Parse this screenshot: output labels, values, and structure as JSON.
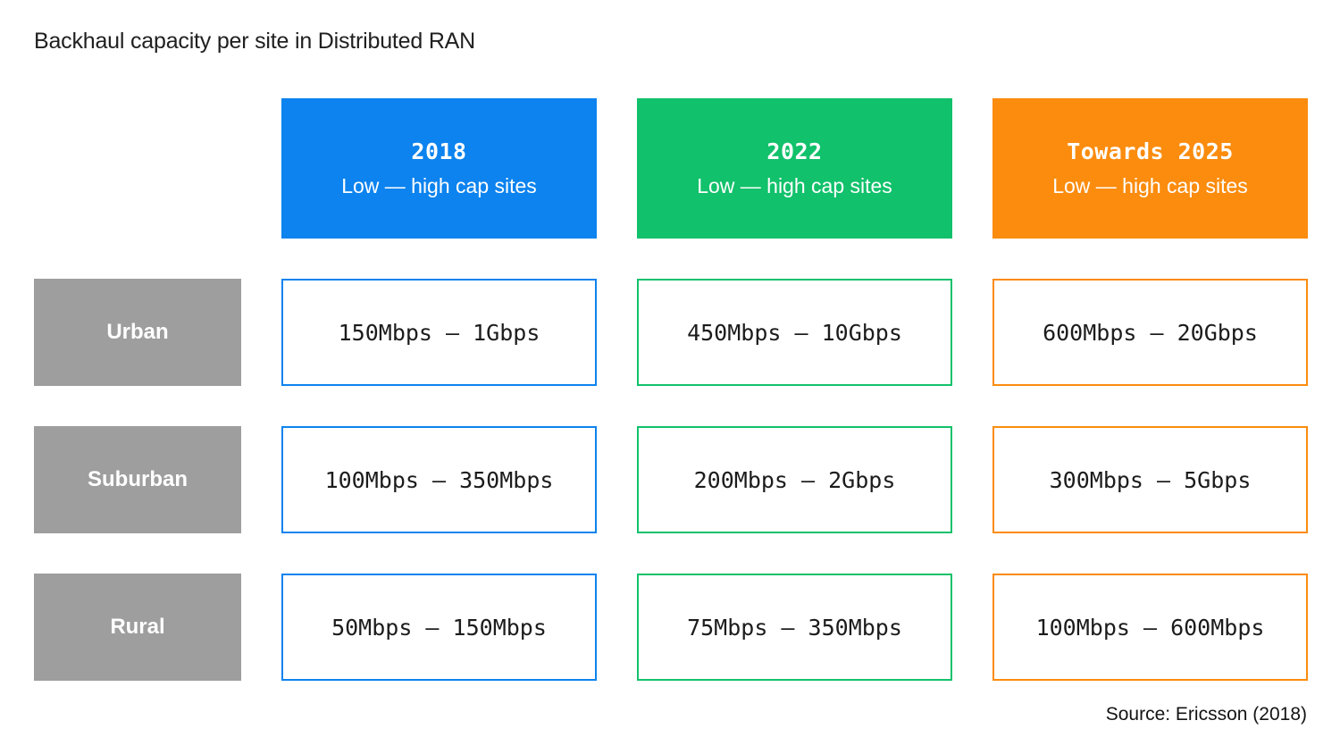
{
  "title": "Backhaul capacity per site in Distributed RAN",
  "source": "Source: Ericsson (2018)",
  "colors": {
    "col_2018": "#0c83ee",
    "col_2022": "#12c16b",
    "col_2025": "#fb8c0e",
    "row_label_gray": "#9e9e9e",
    "header_text": "#ffffff",
    "cell_text": "#1c1c1c",
    "background": "#ffffff"
  },
  "columns": [
    {
      "title": "2018",
      "subtitle": "Low — high cap sites"
    },
    {
      "title": "2022",
      "subtitle": "Low — high cap sites"
    },
    {
      "title": "Towards 2025",
      "subtitle": "Low — high cap sites"
    }
  ],
  "rows": [
    {
      "label": "Urban",
      "cells": [
        "150Mbps — 1Gbps",
        "450Mbps — 10Gbps",
        "600Mbps — 20Gbps"
      ]
    },
    {
      "label": "Suburban",
      "cells": [
        "100Mbps — 350Mbps",
        "200Mbps — 2Gbps",
        "300Mbps — 5Gbps"
      ]
    },
    {
      "label": "Rural",
      "cells": [
        "50Mbps — 150Mbps",
        "75Mbps — 350Mbps",
        "100Mbps — 600Mbps"
      ]
    }
  ],
  "chart_data": {
    "type": "table",
    "title": "Backhaul capacity per site in Distributed RAN",
    "column_headers": [
      "2018 (Low — high cap sites)",
      "2022 (Low — high cap sites)",
      "Towards 2025 (Low — high cap sites)"
    ],
    "row_headers": [
      "Urban",
      "Suburban",
      "Rural"
    ],
    "cells": [
      [
        "150Mbps — 1Gbps",
        "450Mbps — 10Gbps",
        "600Mbps — 20Gbps"
      ],
      [
        "100Mbps — 350Mbps",
        "200Mbps — 2Gbps",
        "300Mbps — 5Gbps"
      ],
      [
        "50Mbps — 150Mbps",
        "75Mbps — 350Mbps",
        "100Mbps — 600Mbps"
      ]
    ],
    "values_mbps": {
      "Urban": {
        "2018": [
          150,
          1000
        ],
        "2022": [
          450,
          10000
        ],
        "Towards 2025": [
          600,
          20000
        ]
      },
      "Suburban": {
        "2018": [
          100,
          350
        ],
        "2022": [
          200,
          2000
        ],
        "Towards 2025": [
          300,
          5000
        ]
      },
      "Rural": {
        "2018": [
          50,
          150
        ],
        "2022": [
          75,
          350
        ],
        "Towards 2025": [
          100,
          600
        ]
      }
    },
    "source": "Source: Ericsson (2018)",
    "layout": {
      "legend": "none",
      "grid": "off"
    }
  }
}
